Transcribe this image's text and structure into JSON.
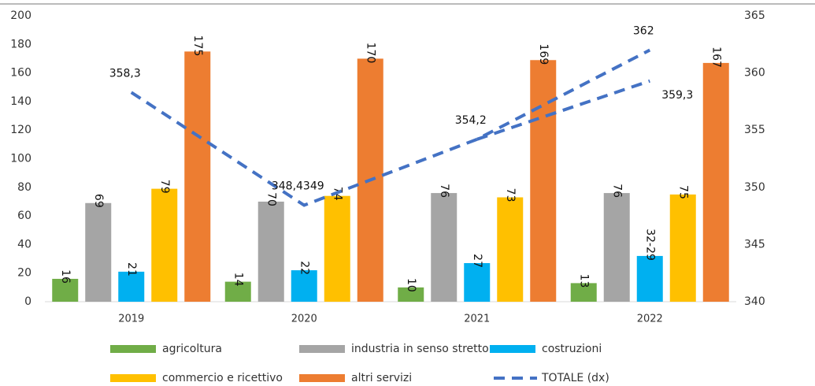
{
  "chart_data": {
    "type": "bar",
    "categories": [
      "2019",
      "2020",
      "2021",
      "2022"
    ],
    "ylim": [
      0,
      200
    ],
    "yticks": [
      0,
      20,
      40,
      60,
      80,
      100,
      120,
      140,
      160,
      180,
      200
    ],
    "y2lim": [
      340,
      365
    ],
    "y2ticks": [
      340,
      345,
      350,
      355,
      360,
      365
    ],
    "series": [
      {
        "name": "agricoltura",
        "color": "#70ad47",
        "values": [
          16,
          14,
          10,
          13
        ]
      },
      {
        "name": "industria in senso stretto",
        "color": "#a5a5a5",
        "values": [
          69,
          70,
          76,
          76
        ]
      },
      {
        "name": "costruzioni",
        "color": "#00b0f0",
        "values": [
          21,
          22,
          27,
          32
        ],
        "value_labels": [
          "21",
          "22",
          "27",
          "32-29"
        ]
      },
      {
        "name": "commercio e ricettivo",
        "color": "#ffc000",
        "values": [
          79,
          74,
          73,
          75
        ]
      },
      {
        "name": "altri servizi",
        "color": "#ed7d31",
        "values": [
          175,
          170,
          169,
          167
        ]
      }
    ],
    "lines": [
      {
        "name": "TOTALE (dx)",
        "color": "#4472c4",
        "axis": "y2",
        "values": [
          358.3,
          348.4349,
          354.2,
          362
        ],
        "value_labels": [
          "358,3",
          "348,4349",
          "354,2",
          "362"
        ]
      },
      {
        "color": "#4472c4",
        "axis": "y2",
        "values": [
          null,
          null,
          354.2,
          359.3
        ],
        "value_labels": [
          null,
          null,
          null,
          "359,3"
        ]
      }
    ]
  }
}
